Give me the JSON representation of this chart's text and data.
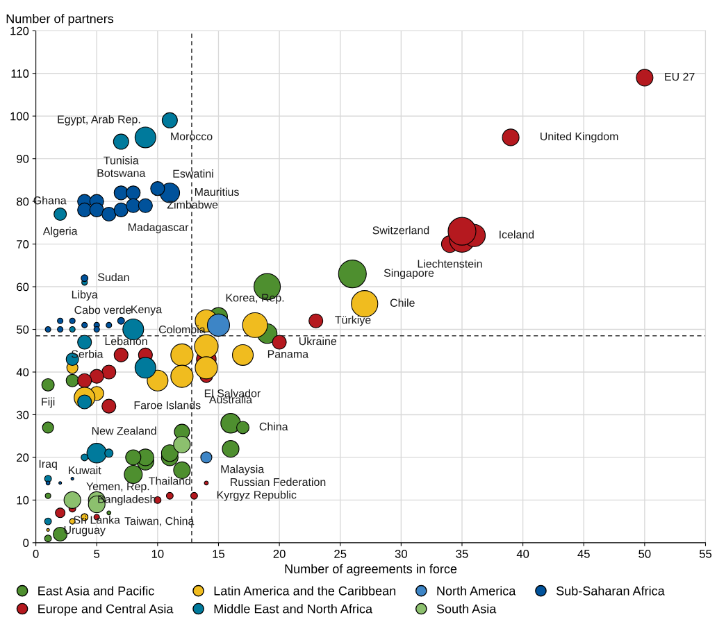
{
  "chart_data": {
    "type": "bubble",
    "xlabel": "Number of agreements in force",
    "ylabel": "Number of partners",
    "xlim": [
      0,
      55
    ],
    "xticks": [
      0,
      5,
      10,
      15,
      20,
      25,
      30,
      35,
      40,
      45,
      50,
      55
    ],
    "ylim": [
      0,
      120
    ],
    "yticks": [
      0,
      10,
      20,
      30,
      40,
      50,
      60,
      70,
      80,
      90,
      100,
      110,
      120
    ],
    "grid": true,
    "legend": "bottom",
    "marker": "circle",
    "series": [
      {
        "name": "East Asia and Pacific",
        "color": "#4e8f2f",
        "x": [
          26,
          19,
          15,
          19,
          16,
          17,
          16,
          12,
          12,
          11,
          11,
          9,
          9,
          8,
          8,
          1,
          3,
          1,
          1,
          2,
          1,
          6
        ],
        "values": [
          63,
          60,
          53,
          49,
          28,
          27,
          22,
          26,
          17,
          20,
          21,
          19,
          20,
          20,
          16,
          37,
          38,
          27,
          11,
          2,
          1,
          7
        ],
        "sizes": [
          1,
          0.9,
          0.42,
          0.5,
          0.5,
          0.2,
          0.36,
          0.3,
          0.36,
          0.36,
          0.36,
          0.36,
          0.36,
          0.3,
          0.42,
          0.2,
          0.2,
          0.16,
          0.04,
          0.25,
          0.06,
          0.02
        ]
      },
      {
        "name": "Europe and Central Asia",
        "color": "#b5191f",
        "x": [
          50,
          39,
          34,
          35,
          36,
          35,
          23,
          20,
          14,
          14,
          9,
          7,
          6,
          5,
          4,
          6,
          11,
          13,
          10,
          14,
          2,
          3,
          4,
          5
        ],
        "values": [
          109,
          95,
          70,
          71,
          72,
          73,
          52,
          47,
          43,
          39,
          44,
          44,
          40,
          39,
          38,
          32,
          11,
          11,
          10,
          14,
          7,
          8,
          6,
          6
        ],
        "sizes": [
          0.36,
          0.36,
          0.36,
          0.8,
          0.64,
          1,
          0.25,
          0.25,
          0.5,
          0.2,
          0.25,
          0.25,
          0.25,
          0.25,
          0.25,
          0.25,
          0.06,
          0.06,
          0.06,
          0.02,
          0.12,
          0.06,
          0.06,
          0.04
        ]
      },
      {
        "name": "Latin America and the Caribbean",
        "color": "#f0bc1f",
        "x": [
          27,
          18,
          14,
          14,
          14,
          12,
          12,
          17,
          10,
          3,
          5,
          4,
          3,
          1,
          4
        ],
        "values": [
          56,
          51,
          52,
          46,
          41,
          44,
          39,
          44,
          38,
          41,
          35,
          34,
          5,
          3,
          6
        ],
        "sizes": [
          0.9,
          0.8,
          0.64,
          0.72,
          0.64,
          0.64,
          0.64,
          0.56,
          0.56,
          0.16,
          0.25,
          0.56,
          0.04,
          0.01,
          0.06
        ]
      },
      {
        "name": "Middle East and North Africa",
        "color": "#007a9c",
        "x": [
          11,
          7,
          9,
          2,
          4,
          4,
          3,
          4,
          9,
          8,
          5,
          6,
          4,
          1,
          1,
          3
        ],
        "values": [
          99,
          94,
          95,
          77,
          61,
          47,
          43,
          33,
          41,
          50,
          21,
          21,
          20,
          15,
          5,
          50
        ],
        "sizes": [
          0.3,
          0.3,
          0.56,
          0.2,
          0.04,
          0.25,
          0.2,
          0.25,
          0.56,
          0.56,
          0.5,
          0.09,
          0.06,
          0.06,
          0.06,
          0.04
        ]
      },
      {
        "name": "North America",
        "color": "#3d85c6",
        "x": [
          15,
          14
        ],
        "values": [
          51,
          20
        ],
        "sizes": [
          0.64,
          0.16
        ]
      },
      {
        "name": "South Asia",
        "color": "#8cc06e",
        "x": [
          12,
          3,
          5,
          5
        ],
        "values": [
          23,
          10,
          10,
          9
        ],
        "sizes": [
          0.36,
          0.36,
          0.36,
          0.36
        ]
      },
      {
        "name": "Sub-Saharan Africa",
        "color": "#00529b",
        "x": [
          11,
          10,
          7,
          8,
          4,
          5,
          4,
          5,
          6,
          7,
          8,
          9,
          4,
          1,
          2,
          2,
          3,
          4,
          5,
          5,
          6,
          7,
          1,
          2,
          3
        ],
        "values": [
          82,
          83,
          82,
          82,
          80,
          80,
          78,
          78,
          77,
          78,
          79,
          79,
          62,
          50,
          50,
          52,
          52,
          51,
          51,
          50,
          51,
          52,
          14,
          14,
          15
        ],
        "sizes": [
          0.5,
          0.25,
          0.25,
          0.25,
          0.25,
          0.25,
          0.25,
          0.25,
          0.25,
          0.25,
          0.25,
          0.25,
          0.06,
          0.04,
          0.04,
          0.04,
          0.04,
          0.04,
          0.04,
          0.04,
          0.04,
          0.06,
          0.02,
          0.01,
          0.01
        ]
      }
    ],
    "ref_lines": [
      {
        "axis": "x",
        "value": 12.8,
        "line_style": "dashed",
        "color": "#333333"
      },
      {
        "axis": "y",
        "value": 48.5,
        "line_style": "dashed",
        "color": "#333333"
      }
    ],
    "annotations": [
      {
        "text": "Egypt, Arab Rep.",
        "x": 11,
        "y": 99
      },
      {
        "text": "Tunisia",
        "x": 7,
        "y": 94
      },
      {
        "text": "Morocco",
        "x": 9,
        "y": 95
      },
      {
        "text": "Botswana",
        "x": 7,
        "y": 82
      },
      {
        "text": "Eswatini",
        "x": 10,
        "y": 83
      },
      {
        "text": "Ghana",
        "x": 4,
        "y": 80
      },
      {
        "text": "Mauritius",
        "x": 11,
        "y": 82
      },
      {
        "text": "Algeria",
        "x": 2,
        "y": 77
      },
      {
        "text": "Madagascar",
        "x": 6,
        "y": 77
      },
      {
        "text": "Zimbabwe",
        "x": 9,
        "y": 79
      },
      {
        "text": "Sudan",
        "x": 4,
        "y": 62
      },
      {
        "text": "Libya",
        "x": 4,
        "y": 61
      },
      {
        "text": "Cabo verde",
        "x": 2,
        "y": 52
      },
      {
        "text": "Kenya",
        "x": 7,
        "y": 52
      },
      {
        "text": "Lebanon",
        "x": 4,
        "y": 47
      },
      {
        "text": "Serbia",
        "x": 7,
        "y": 44
      },
      {
        "text": "Colombia",
        "x": 12,
        "y": 44
      },
      {
        "text": "Fiji",
        "x": 1,
        "y": 37
      },
      {
        "text": "Faroe Islands",
        "x": 6,
        "y": 32
      },
      {
        "text": "El Salvador",
        "x": 12,
        "y": 39
      },
      {
        "text": "Korea, Rep.",
        "x": 18,
        "y": 51
      },
      {
        "text": "Türkiye",
        "x": 23,
        "y": 52
      },
      {
        "text": "Chile",
        "x": 27,
        "y": 56
      },
      {
        "text": "Singapore",
        "x": 26,
        "y": 63
      },
      {
        "text": "Ukraine",
        "x": 20,
        "y": 47
      },
      {
        "text": "Panama",
        "x": 17,
        "y": 44
      },
      {
        "text": "Australia",
        "x": 16,
        "y": 28
      },
      {
        "text": "China",
        "x": 17,
        "y": 27
      },
      {
        "text": "New Zealand",
        "x": 12,
        "y": 26
      },
      {
        "text": "Malaysia",
        "x": 14,
        "y": 20
      },
      {
        "text": "Kuwait",
        "x": 4,
        "y": 20
      },
      {
        "text": "Yemen, Rep.",
        "x": 3,
        "y": 15
      },
      {
        "text": "Iraq",
        "x": 1,
        "y": 15
      },
      {
        "text": "Bangladesh",
        "x": 3,
        "y": 10
      },
      {
        "text": "Thailand",
        "x": 11,
        "y": 11
      },
      {
        "text": "Russian Federation",
        "x": 14,
        "y": 14
      },
      {
        "text": "Sri Lanka",
        "x": 5,
        "y": 10
      },
      {
        "text": "Kyrgyz Republic",
        "x": 13,
        "y": 11
      },
      {
        "text": "Taiwan, China",
        "x": 6,
        "y": 7
      },
      {
        "text": "Uruguay",
        "x": 4,
        "y": 6
      },
      {
        "text": "EU 27",
        "x": 50,
        "y": 109
      },
      {
        "text": "United Kingdom",
        "x": 39,
        "y": 95
      },
      {
        "text": "Switzerland",
        "x": 35,
        "y": 73
      },
      {
        "text": "Iceland",
        "x": 36,
        "y": 72
      },
      {
        "text": "Liechtenstein",
        "x": 34,
        "y": 70
      }
    ]
  }
}
